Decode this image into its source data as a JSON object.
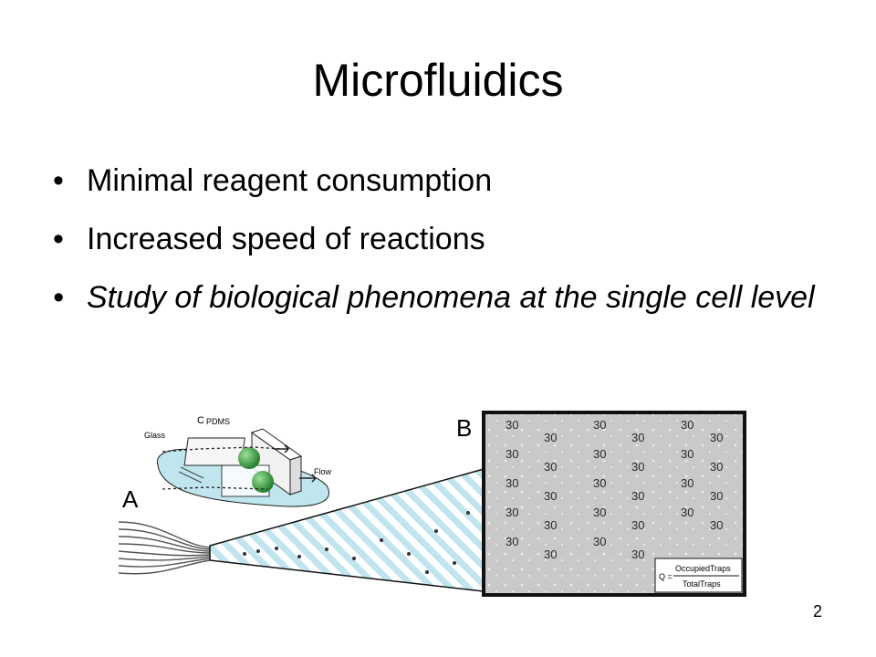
{
  "slide": {
    "title": "Microfluidics",
    "bullets": [
      {
        "text": "Minimal reagent consumption",
        "italic": false
      },
      {
        "text": "Increased speed of reactions",
        "italic": false
      },
      {
        "text": "Study of biological phenomena at the single cell level",
        "italic": true
      }
    ],
    "bullet_glyph": "•",
    "page_number": "2"
  },
  "figure": {
    "label_a": "A",
    "label_b": "B",
    "label_c": "C",
    "glass_label": "Glass",
    "pdms_label": "PDMS",
    "flow_label": "Flow",
    "trap_text": "30",
    "formula_q": "Q =",
    "formula_numerator": "OccupiedTraps",
    "formula_denominator": "TotalTraps",
    "colors": {
      "channel_blue": "#bfe6ee",
      "cell_green": "#2e9a32",
      "panel_gray": "#c9c9c9",
      "border": "#111111"
    }
  }
}
